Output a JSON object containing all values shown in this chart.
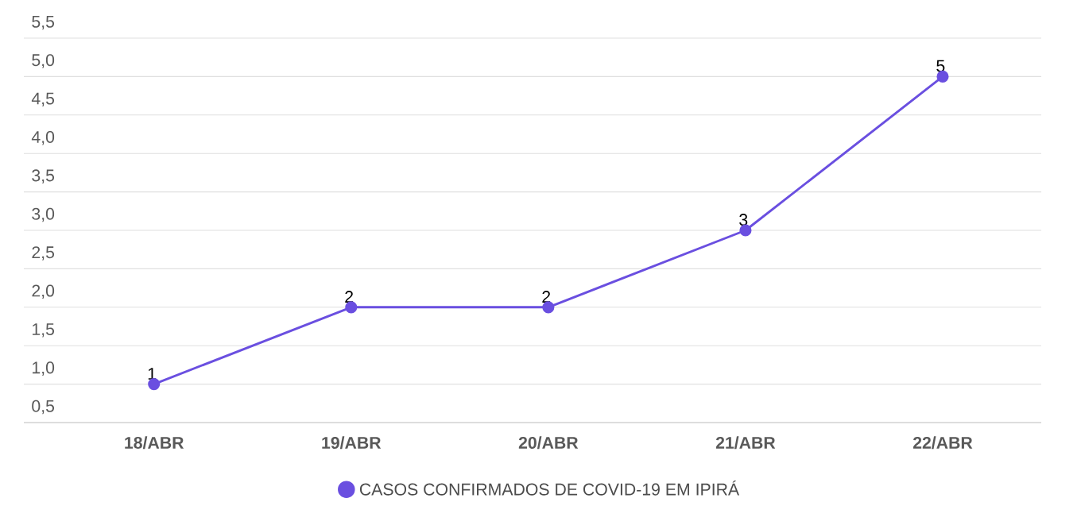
{
  "chart_data": {
    "type": "line",
    "categories": [
      "18/ABR",
      "19/ABR",
      "20/ABR",
      "21/ABR",
      "22/ABR"
    ],
    "series": [
      {
        "name": "CASOS CONFIRMADOS DE COVID-19 EM IPIRÁ",
        "color": "#6a4fe0",
        "values": [
          1,
          2,
          2,
          3,
          5
        ]
      }
    ],
    "ylim": [
      0.5,
      5.5
    ],
    "yticks": [
      {
        "value": 0.5,
        "label": "0,5"
      },
      {
        "value": 1.0,
        "label": "1,0"
      },
      {
        "value": 1.5,
        "label": "1,5"
      },
      {
        "value": 2.0,
        "label": "2,0"
      },
      {
        "value": 2.5,
        "label": "2,5"
      },
      {
        "value": 3.0,
        "label": "3,0"
      },
      {
        "value": 3.5,
        "label": "3,5"
      },
      {
        "value": 4.0,
        "label": "4,0"
      },
      {
        "value": 4.5,
        "label": "4,5"
      },
      {
        "value": 5.0,
        "label": "5,0"
      },
      {
        "value": 5.5,
        "label": "5,5"
      }
    ],
    "grid": "y",
    "legend": "bottom",
    "marker": "circle",
    "line_style": "solid",
    "data_labels": true
  }
}
